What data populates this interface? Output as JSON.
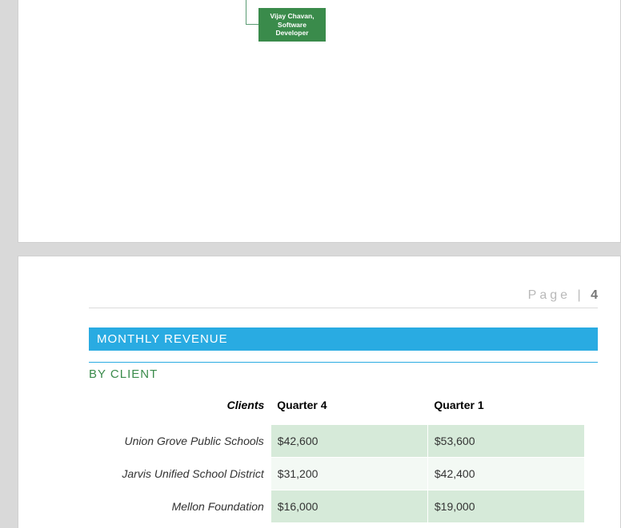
{
  "org_box": {
    "name": "Vijay Chavan,",
    "role1": "Software",
    "role2": "Developer",
    "bg_color": "#3a8b4b"
  },
  "page_label": {
    "word": "Page",
    "sep": "|",
    "num": "4"
  },
  "section_title": "MONTHLY REVENUE",
  "sub_heading": "BY CLIENT",
  "table": {
    "headers": {
      "clients": "Clients",
      "q4": "Quarter 4",
      "q1": "Quarter 1"
    },
    "rows": [
      {
        "client": "Union Grove Public Schools",
        "q4": "$42,600",
        "q1": "$53,600",
        "alt": false
      },
      {
        "client": "Jarvis Unified School District",
        "q4": "$31,200",
        "q1": "$42,400",
        "alt": true
      },
      {
        "client": "Mellon Foundation",
        "q4": "$16,000",
        "q1": "$19,000",
        "alt": false
      }
    ]
  },
  "colors": {
    "accent_blue": "#29abe2",
    "accent_green": "#3a8b4b",
    "row_even": "#d6ead9",
    "row_odd": "#f3f9f4",
    "page_bg": "#ffffff",
    "canvas_bg": "#d9d9d9"
  }
}
